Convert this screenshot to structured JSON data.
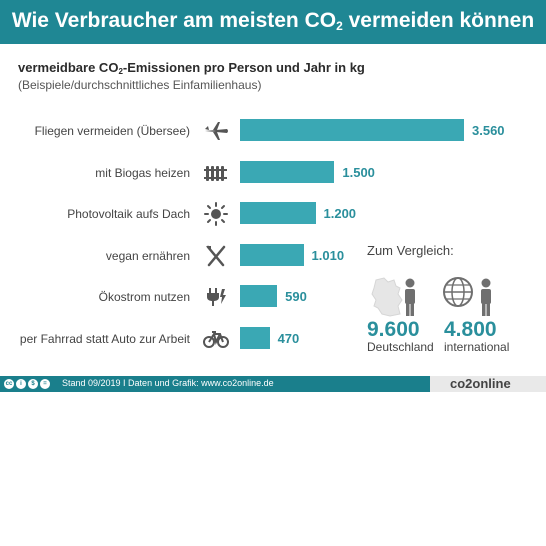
{
  "header": {
    "title_prefix": "Wie Verbraucher am meisten CO",
    "title_sub": "2",
    "title_suffix": " vermeiden können"
  },
  "chart_data": {
    "type": "bar",
    "orientation": "horizontal",
    "title_prefix": "vermeidbare CO",
    "title_sub": "2",
    "title_suffix": "-Emissionen pro Person und Jahr in kg",
    "subtitle": "(Beispiele/durchschnittliches Einfamilienhaus)",
    "categories": [
      "Fliegen vermeiden (Übersee)",
      "mit Biogas heizen",
      "Photovoltaik aufs Dach",
      "vegan ernähren",
      "Ökostrom nutzen",
      "per Fahrrad statt Auto zur Arbeit"
    ],
    "values": [
      3560,
      1500,
      1200,
      1010,
      590,
      470
    ],
    "value_labels": [
      "3.560",
      "1.500",
      "1.200",
      "1.010",
      "590",
      "470"
    ],
    "icons": [
      "airplane-icon",
      "radiator-icon",
      "sun-icon",
      "cutlery-icon",
      "plug-icon",
      "bicycle-icon"
    ],
    "bar_color": "#3aa8b4",
    "value_color": "#2a8f9c"
  },
  "comparison": {
    "title": "Zum Vergleich:",
    "items": [
      {
        "value": "9.600",
        "label": "Deutschland",
        "icon": "germany-map-icon"
      },
      {
        "value": "4.800",
        "label": "international",
        "icon": "globe-icon"
      }
    ]
  },
  "footer": {
    "text": "Stand 09/2019  I  Daten und Grafik: www.co2online.de",
    "brand": "co2online",
    "license_icons": [
      "cc",
      "i",
      "$",
      "="
    ]
  },
  "colors": {
    "banner": "#1f8794",
    "footer_band": "#1a7f8c"
  }
}
